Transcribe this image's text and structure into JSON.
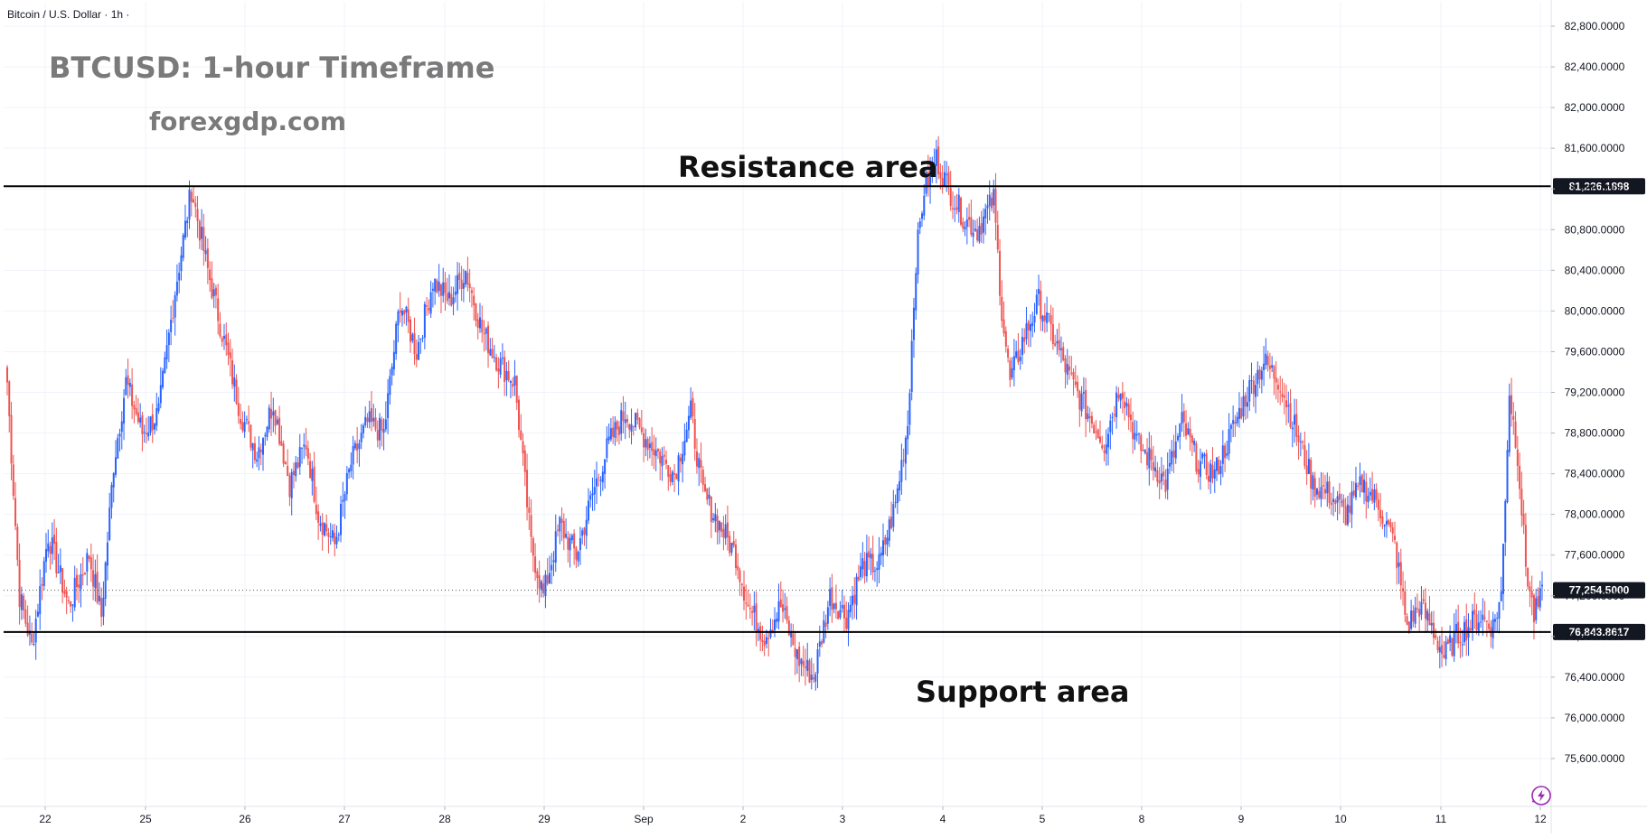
{
  "header": {
    "symbol": "Bitcoin / U.S. Dollar · 1h ·"
  },
  "annotations": {
    "title": "BTCUSD: 1-hour Timeframe",
    "site": "forexgdp.com",
    "resistance_label": "Resistance area",
    "support_label": "Support area"
  },
  "colors": {
    "up": "#2962ff",
    "down": "#ef5350",
    "grid": "#f0f3fa",
    "level_line": "#000000",
    "price_tag_bg": "#131722",
    "price_tag_text": "#ffffff"
  },
  "chart_data": {
    "type": "candlestick",
    "title": "BTCUSD: 1-hour Timeframe",
    "symbol": "Bitcoin / U.S. Dollar",
    "timeframe": "1h",
    "ylim": [
      75300,
      83100
    ],
    "y_ticks": [
      "82,800.0000",
      "82,400.0000",
      "82,000.0000",
      "81,600.0000",
      "81,200.0000",
      "80,800.0000",
      "80,400.0000",
      "80,000.0000",
      "79,600.0000",
      "79,200.0000",
      "78,800.0000",
      "78,400.0000",
      "78,000.0000",
      "77,600.0000",
      "77,200.0000",
      "76,800.0000",
      "76,400.0000",
      "76,000.0000",
      "75,600.0000"
    ],
    "x_ticks": [
      "22",
      "25",
      "26",
      "27",
      "28",
      "29",
      "Sep",
      "2",
      "3",
      "4",
      "5",
      "8",
      "9",
      "10",
      "11",
      "12"
    ],
    "levels": [
      {
        "name": "Resistance area",
        "value": 81226.1898,
        "label": "81,226.1898"
      },
      {
        "name": "Support area",
        "value": 76843.8617,
        "label": "76,843.8617"
      }
    ],
    "last_price": {
      "value": 77254.5,
      "label": "77,254.5000"
    },
    "price_path": [
      [
        0,
        79300
      ],
      [
        6,
        77200
      ],
      [
        12,
        76700
      ],
      [
        20,
        77800
      ],
      [
        30,
        77100
      ],
      [
        40,
        77600
      ],
      [
        46,
        77000
      ],
      [
        52,
        78500
      ],
      [
        58,
        79300
      ],
      [
        66,
        78800
      ],
      [
        74,
        79000
      ],
      [
        82,
        80200
      ],
      [
        90,
        81200
      ],
      [
        98,
        80400
      ],
      [
        106,
        79700
      ],
      [
        114,
        79000
      ],
      [
        122,
        78600
      ],
      [
        130,
        79100
      ],
      [
        138,
        78300
      ],
      [
        146,
        78700
      ],
      [
        152,
        78000
      ],
      [
        160,
        77700
      ],
      [
        168,
        78500
      ],
      [
        176,
        78900
      ],
      [
        184,
        78800
      ],
      [
        192,
        80100
      ],
      [
        200,
        79600
      ],
      [
        208,
        80300
      ],
      [
        216,
        80100
      ],
      [
        224,
        80400
      ],
      [
        232,
        79800
      ],
      [
        240,
        79500
      ],
      [
        248,
        79300
      ],
      [
        256,
        77700
      ],
      [
        262,
        77200
      ],
      [
        270,
        77900
      ],
      [
        278,
        77600
      ],
      [
        286,
        78200
      ],
      [
        294,
        78700
      ],
      [
        302,
        79000
      ],
      [
        310,
        78800
      ],
      [
        318,
        78600
      ],
      [
        326,
        78400
      ],
      [
        334,
        79000
      ],
      [
        340,
        78200
      ],
      [
        348,
        77900
      ],
      [
        356,
        77600
      ],
      [
        362,
        77100
      ],
      [
        370,
        76800
      ],
      [
        378,
        77100
      ],
      [
        386,
        76600
      ],
      [
        394,
        76400
      ],
      [
        402,
        77200
      ],
      [
        410,
        77000
      ],
      [
        418,
        77500
      ],
      [
        426,
        77500
      ],
      [
        434,
        78100
      ],
      [
        440,
        78900
      ],
      [
        444,
        80500
      ],
      [
        448,
        81200
      ],
      [
        454,
        81500
      ],
      [
        460,
        81200
      ],
      [
        468,
        80900
      ],
      [
        474,
        80800
      ],
      [
        482,
        81100
      ],
      [
        486,
        80000
      ],
      [
        490,
        79300
      ],
      [
        496,
        79700
      ],
      [
        504,
        80100
      ],
      [
        512,
        79700
      ],
      [
        520,
        79300
      ],
      [
        528,
        79000
      ],
      [
        536,
        78700
      ],
      [
        544,
        79300
      ],
      [
        552,
        78700
      ],
      [
        560,
        78500
      ],
      [
        566,
        78300
      ],
      [
        574,
        78900
      ],
      [
        582,
        78500
      ],
      [
        590,
        78400
      ],
      [
        598,
        78800
      ],
      [
        606,
        79200
      ],
      [
        614,
        79500
      ],
      [
        622,
        79300
      ],
      [
        630,
        78800
      ],
      [
        638,
        78300
      ],
      [
        646,
        78200
      ],
      [
        654,
        78000
      ],
      [
        662,
        78300
      ],
      [
        670,
        78100
      ],
      [
        678,
        77700
      ],
      [
        684,
        76900
      ],
      [
        690,
        77100
      ],
      [
        696,
        76900
      ],
      [
        702,
        76600
      ],
      [
        708,
        76800
      ],
      [
        714,
        76900
      ],
      [
        720,
        77000
      ],
      [
        726,
        76900
      ],
      [
        730,
        77200
      ],
      [
        734,
        79200
      ],
      [
        738,
        78600
      ],
      [
        742,
        77500
      ],
      [
        746,
        77000
      ],
      [
        750,
        77200
      ]
    ]
  }
}
